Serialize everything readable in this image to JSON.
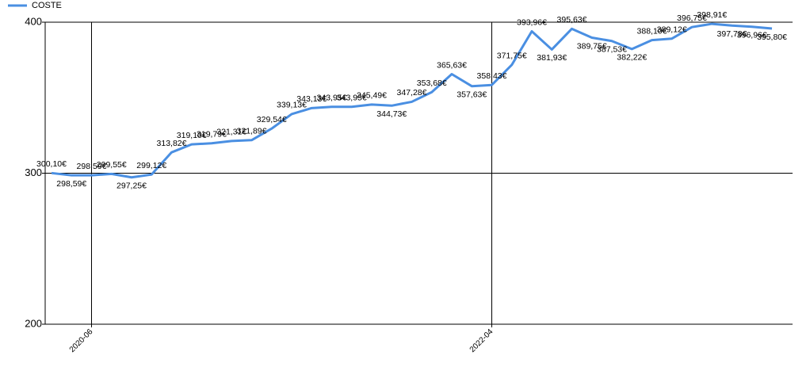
{
  "chart_data": {
    "type": "line",
    "categories": [
      null,
      null,
      "2020-06",
      null,
      null,
      null,
      null,
      null,
      null,
      null,
      null,
      null,
      null,
      null,
      null,
      null,
      null,
      null,
      null,
      null,
      null,
      null,
      "2022-04",
      null,
      null,
      null,
      null,
      null,
      null,
      null,
      null,
      null,
      null,
      null,
      null,
      null,
      null
    ],
    "series": [
      {
        "name": "COSTE",
        "color": "#4a8fe2",
        "values": [
          300.1,
          298.59,
          298.59,
          299.55,
          297.25,
          299.12,
          313.82,
          319.1,
          319.79,
          321.31,
          321.89,
          329.54,
          339.13,
          343.13,
          343.95,
          343.95,
          345.49,
          344.73,
          347.28,
          353.68,
          365.63,
          357.63,
          358.43,
          371.75,
          393.96,
          381.93,
          395.63,
          389.75,
          387.53,
          382.22,
          388.1,
          389.12,
          396.75,
          398.91,
          397.78,
          396.96,
          395.8
        ],
        "value_labels": [
          "300,10€",
          "298,59€",
          "298,59€",
          "299,55€",
          "297,25€",
          "299,12€",
          "313,82€",
          "319,10€",
          "319,79€",
          "321,31€",
          "321,89€",
          "329,54€",
          "339,13€",
          "343,13€",
          "343,95€",
          "343,95€",
          "345,49€",
          "344,73€",
          "347,28€",
          "353,68€",
          "365,63€",
          "357,63€",
          "358,43€",
          "371,75€",
          "393,96€",
          "381,93€",
          "395,63€",
          "389,75€",
          "387,53€",
          "382,22€",
          "388,10€",
          "389,12€",
          "396,75€",
          "398,91€",
          "397,78€",
          "396,96€",
          "395,80€"
        ]
      }
    ],
    "ylim": [
      200,
      400
    ],
    "yticks": [
      200,
      300,
      400
    ],
    "grid": true,
    "legend": "top-left"
  }
}
